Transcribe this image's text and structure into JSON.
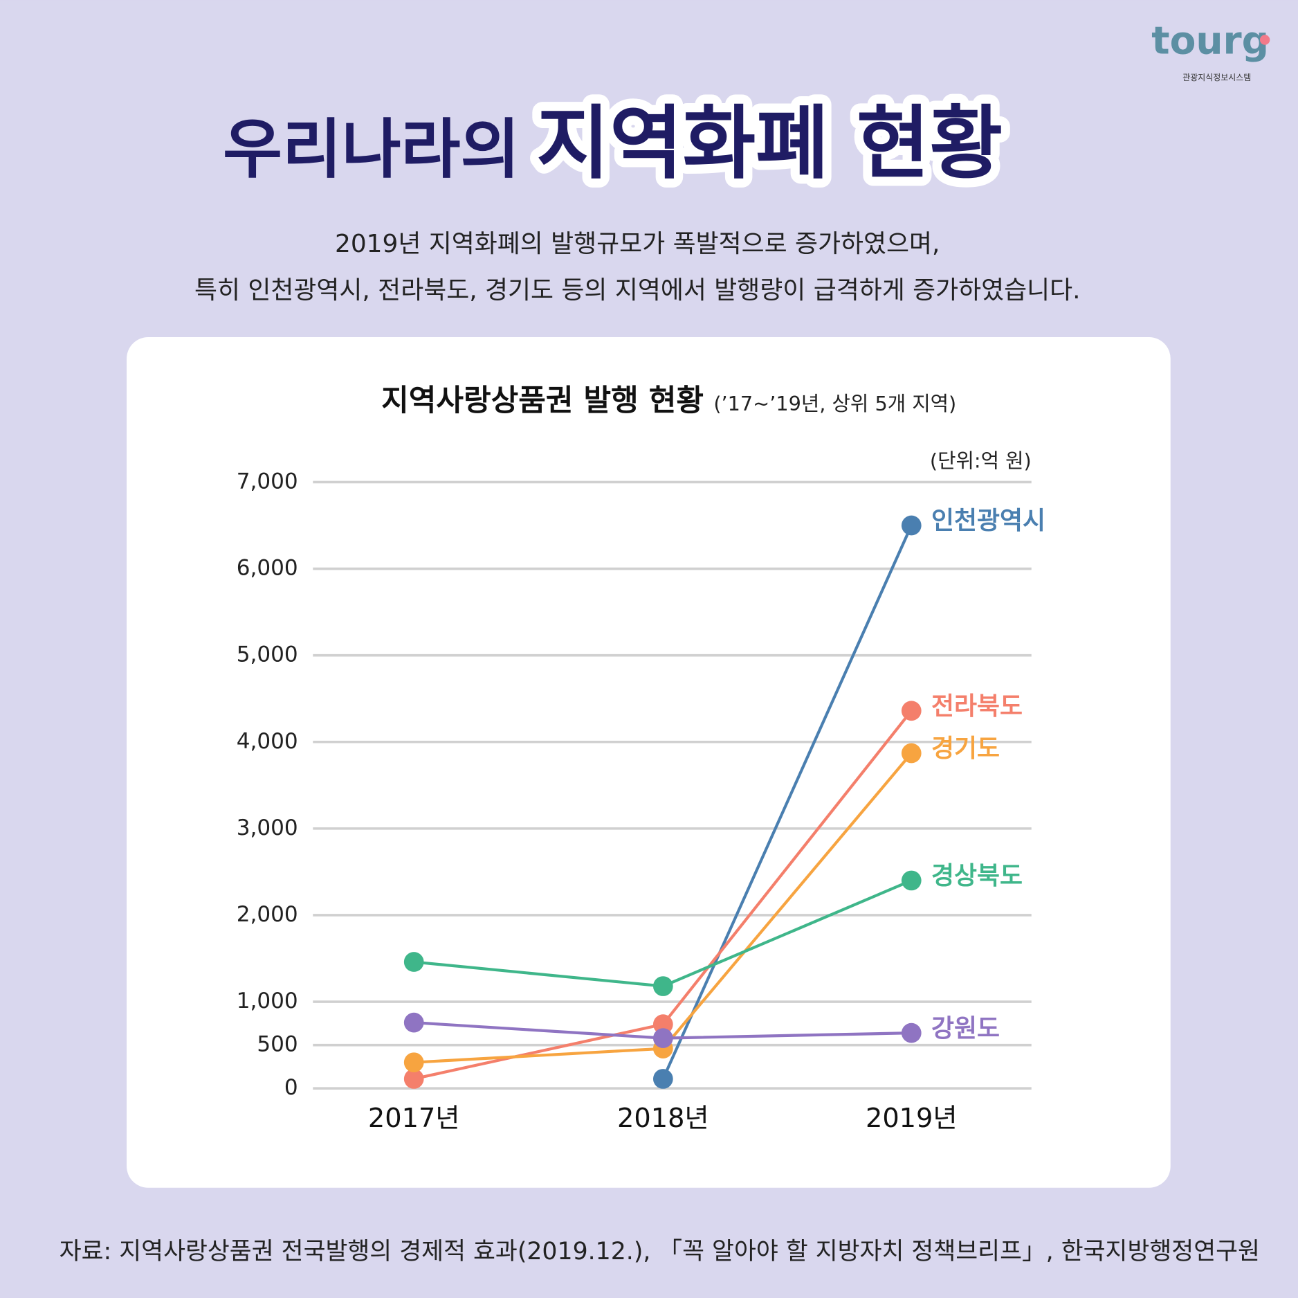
{
  "logo": {
    "name": "tourg",
    "subtitle": "관광지식정보시스템"
  },
  "header": {
    "title_part1": "우리나라의",
    "title_part2": "지역화폐 현황",
    "description": [
      "2019년 지역화폐의 발행규모가 폭발적으로 증가하였으며,",
      "특히 인천광역시, 전라북도, 경기도 등의 지역에서 발행량이 급격하게 증가하였습니다."
    ]
  },
  "chart_data": {
    "type": "line",
    "title": "지역사랑상품권 발행 현황",
    "subtitle": "(’17~’19년, 상위 5개 지역)",
    "unit": "(단위:억 원)",
    "categories": [
      "2017년",
      "2018년",
      "2019년"
    ],
    "series": [
      {
        "name": "인천광역시",
        "color": "#4a7fb0",
        "values": [
          null,
          110,
          6500
        ]
      },
      {
        "name": "전라북도",
        "color": "#f47f6b",
        "values": [
          110,
          740,
          4360
        ]
      },
      {
        "name": "경기도",
        "color": "#f7a440",
        "values": [
          300,
          460,
          3870
        ]
      },
      {
        "name": "경상북도",
        "color": "#3fb68a",
        "values": [
          1460,
          1180,
          2400
        ]
      },
      {
        "name": "강원도",
        "color": "#8f74c2",
        "values": [
          760,
          580,
          640
        ]
      }
    ],
    "ylim": [
      0,
      7000
    ],
    "yticks": [
      0,
      500,
      {
        "value": 1000,
        "label": "1,000"
      },
      {
        "value": 2000,
        "label": "2,000"
      },
      {
        "value": 3000,
        "label": "3,000"
      },
      {
        "value": 4000,
        "label": "4,000"
      },
      {
        "value": 5000,
        "label": "5,000"
      },
      {
        "value": 6000,
        "label": "6,000"
      },
      {
        "value": 7000,
        "label": "7,000"
      }
    ],
    "grid": true
  },
  "source": "자료: 지역사랑상품권 전국발행의 경제적 효과(2019.12.), 「꼭 알아야 할 지방자치 정책브리프」, 한국지방행정연구원"
}
